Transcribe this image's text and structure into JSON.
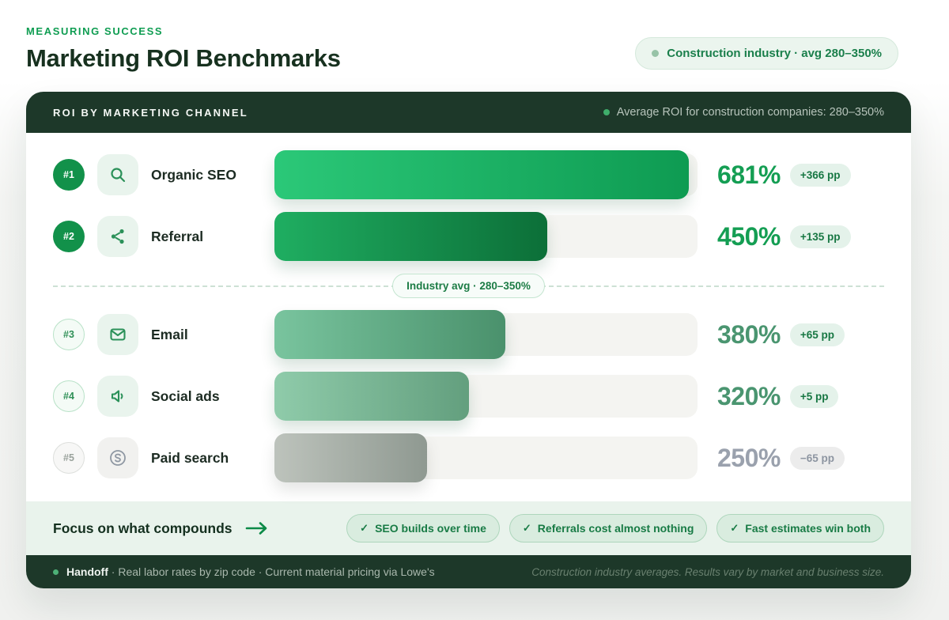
{
  "header": {
    "eyebrow": "MEASURING SUCCESS",
    "title": "Marketing ROI Benchmarks",
    "industry_pill": "Construction industry · avg 280–350%"
  },
  "panel": {
    "title": "ROI BY MARKETING CHANNEL",
    "subtitle": "Average ROI for construction companies: 280–350%"
  },
  "divider_pill": "Industry avg · 280–350%",
  "rows": [
    {
      "rank": "#1",
      "label": "Organic SEO",
      "icon": "search-icon",
      "value": "681%",
      "delta": "+366 pp",
      "bar_pct": 98,
      "bar_from": "#2bc878",
      "bar_to": "#0e9b52"
    },
    {
      "rank": "#2",
      "label": "Referral",
      "icon": "share-icon",
      "value": "450%",
      "delta": "+135 pp",
      "bar_pct": 64.5,
      "bar_from": "#1fae61",
      "bar_to": "#0c6f38"
    },
    {
      "rank": "#3",
      "label": "Email",
      "icon": "mail-icon",
      "value": "380%",
      "delta": "+65 pp",
      "bar_pct": 54.5,
      "bar_from": "#79c49e",
      "bar_to": "#4a916c"
    },
    {
      "rank": "#4",
      "label": "Social ads",
      "icon": "speaker-icon",
      "value": "320%",
      "delta": "+5 pp",
      "bar_pct": 46,
      "bar_from": "#8fcbaa",
      "bar_to": "#639f7e"
    },
    {
      "rank": "#5",
      "label": "Paid search",
      "icon": "dollar-icon",
      "value": "250%",
      "delta": "−65 pp",
      "bar_pct": 36,
      "bar_from": "#bdc3bc",
      "bar_to": "#8f9991"
    }
  ],
  "footer": {
    "cta": "Focus on what compounds",
    "pills": [
      "SEO builds over time",
      "Referrals cost almost nothing",
      "Fast estimates win both"
    ]
  },
  "bottom": {
    "brand": "Handoff",
    "sources": "· Real labor rates by zip code · Current material pricing via Lowe's",
    "disclaimer": "Construction industry averages. Results vary by market and business size."
  },
  "colors": {
    "dark_green": "#1d3829",
    "accent_green": "#149e53",
    "sage_green": "#4a9570",
    "muted_gray": "#9aa1ad",
    "track_gray": "#f4f4f1",
    "band_green": "#e9f3ec"
  },
  "chart_data": {
    "type": "bar",
    "orientation": "horizontal",
    "title": "ROI by Marketing Channel",
    "categories": [
      "Organic SEO",
      "Referral",
      "Email",
      "Social ads",
      "Paid search"
    ],
    "values": [
      681,
      450,
      380,
      320,
      250
    ],
    "value_unit": "%",
    "ranks": [
      "#1",
      "#2",
      "#3",
      "#4",
      "#5"
    ],
    "deltas_pp": [
      366,
      135,
      65,
      5,
      -65
    ],
    "industry_avg_range": [
      280,
      350
    ],
    "xlim": [
      0,
      700
    ],
    "grid": false,
    "annotations": [
      "Industry avg · 280–350%",
      "Average ROI for construction companies: 280–350%"
    ]
  }
}
